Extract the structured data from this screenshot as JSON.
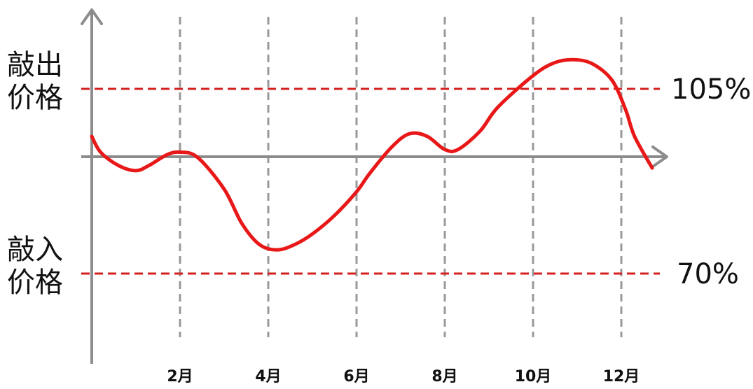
{
  "chart_data": {
    "type": "line",
    "title": "",
    "xlabel": "",
    "ylabel": "",
    "x_tick_labels": [
      "2月",
      "4月",
      "6月",
      "8月",
      "10月",
      "12月"
    ],
    "xlim": [
      0,
      13.3
    ],
    "ylim": [
      45,
      125
    ],
    "grid": "vertical dashed lines at even months",
    "reference_lines": [
      {
        "label_lines": [
          "敲出",
          "价格"
        ],
        "value": 105,
        "value_label": "105%",
        "color": "#d42020"
      },
      {
        "label_lines": [
          "敲入",
          "价格"
        ],
        "value": 70,
        "value_label": "70%",
        "color": "#d42020"
      }
    ],
    "series": [
      {
        "color": "#e81818",
        "x": [
          0,
          0.2,
          0.6,
          1.0,
          1.3,
          1.7,
          2.0,
          2.4,
          3.0,
          3.4,
          3.8,
          4.2,
          4.6,
          5.0,
          5.5,
          6.0,
          6.3,
          6.8,
          7.2,
          7.6,
          8.0,
          8.3,
          8.8,
          9.2,
          10.0,
          10.5,
          11.0,
          11.4,
          11.8,
          12.1,
          12.3,
          12.7
        ],
        "y": [
          96,
          93,
          90.5,
          89.5,
          90.5,
          92.5,
          93,
          92,
          86,
          79.5,
          75.5,
          74.5,
          75.5,
          77.5,
          81,
          85.5,
          89,
          94,
          96.5,
          96,
          93.5,
          93.5,
          97,
          101.5,
          107.5,
          110,
          110.5,
          109.5,
          106.5,
          101,
          96,
          90
        ]
      }
    ],
    "colors": {
      "axis": "#8c8c8c",
      "grid": "#999999",
      "reference": "#d42020",
      "series": "#e81818"
    }
  }
}
